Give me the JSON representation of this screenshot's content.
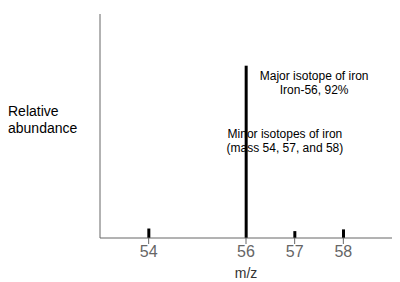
{
  "chart_data": {
    "type": "bar",
    "xlabel": "m/z",
    "ylabel": "Relative\nabundance",
    "x": [
      54,
      56,
      57,
      58
    ],
    "values": [
      0.055,
      1.0,
      0.04,
      0.05
    ],
    "color": "#000000",
    "xlim": [
      53,
      59
    ],
    "xticks": [
      54,
      56,
      57,
      58
    ],
    "ylim": [
      0,
      1.3
    ],
    "yticks": [],
    "tick_labels": "x",
    "annotations": [
      {
        "text": "Major isotope of iron\nIron-56, 92%",
        "x": 57.4,
        "y": 0.82
      },
      {
        "text": "Minor isotopes of iron\n(mass 54, 57, and 58)",
        "x": 56.8,
        "y": 0.48
      }
    ]
  }
}
